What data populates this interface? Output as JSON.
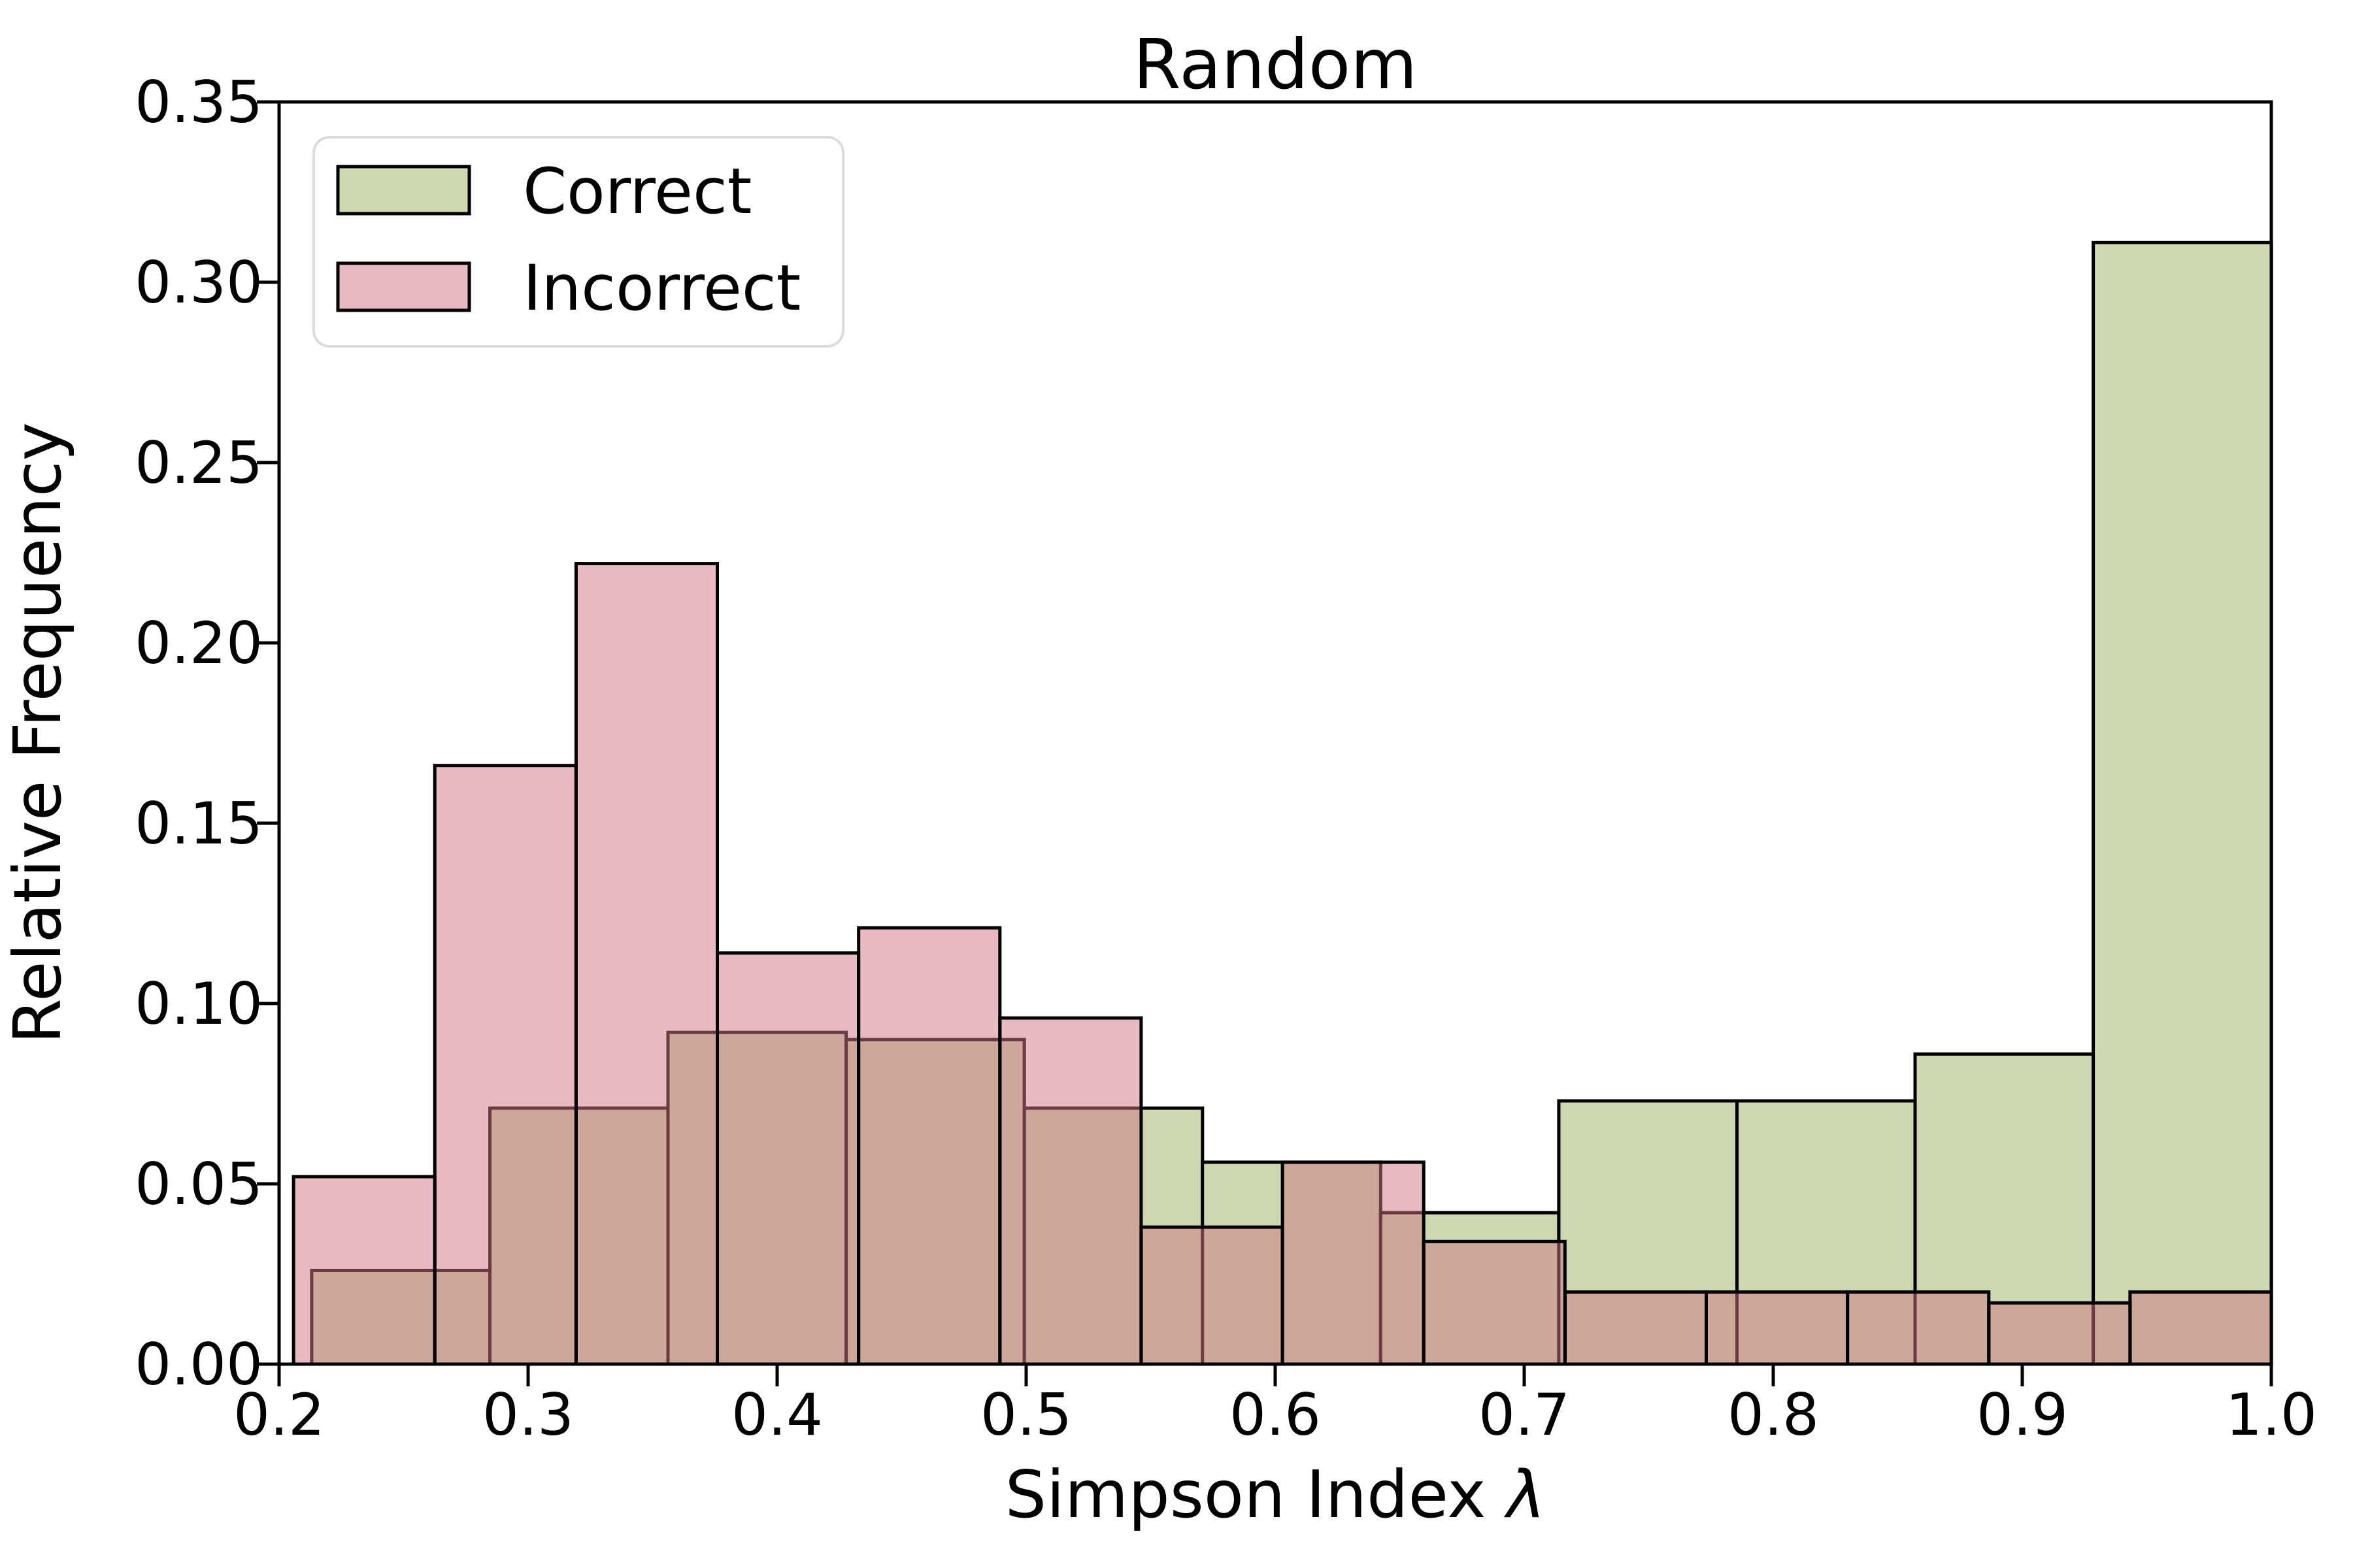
{
  "chart_data": {
    "type": "histogram",
    "title": "Random",
    "xlabel": "Simpson Index λ",
    "xlabel_prefix": "Simpson Index ",
    "xlabel_symbol": "λ",
    "ylabel": "Relative Frequency",
    "xlim": [
      0.2,
      1.0
    ],
    "ylim": [
      0.0,
      0.35
    ],
    "grid": false,
    "xtick_values": [
      0.2,
      0.3,
      0.4,
      0.5,
      0.6,
      0.7,
      0.8,
      0.9,
      1.0
    ],
    "xtick_labels": [
      "0.2",
      "0.3",
      "0.4",
      "0.5",
      "0.6",
      "0.7",
      "0.8",
      "0.9",
      "1.0"
    ],
    "ytick_values": [
      0.0,
      0.05,
      0.1,
      0.15,
      0.2,
      0.25,
      0.3,
      0.35
    ],
    "ytick_labels": [
      "0.00",
      "0.05",
      "0.10",
      "0.15",
      "0.20",
      "0.25",
      "0.30",
      "0.35"
    ],
    "legend": {
      "position": "upper left",
      "entries": [
        {
          "label": "Correct",
          "color": "#cdd8af"
        },
        {
          "label": "Incorrect",
          "color": "#e8bac1"
        }
      ]
    },
    "series": [
      {
        "name": "Correct",
        "color": "#cdd8af",
        "edge_color": "#000000",
        "bin_start": 0.2131,
        "bin_width": 0.07154,
        "rel_freq": [
          0.026,
          0.071,
          0.092,
          0.09,
          0.071,
          0.056,
          0.042,
          0.073,
          0.073,
          0.086,
          0.311
        ]
      },
      {
        "name": "Incorrect",
        "base_color": "rgb(209,117,131)",
        "alpha": 0.5,
        "edge_color": "#000000",
        "bin_start": 0.2058,
        "bin_width": 0.05673,
        "rel_freq": [
          0.052,
          0.166,
          0.222,
          0.114,
          0.121,
          0.096,
          0.038,
          0.056,
          0.034,
          0.02,
          0.02,
          0.02,
          0.017,
          0.02
        ]
      }
    ]
  }
}
